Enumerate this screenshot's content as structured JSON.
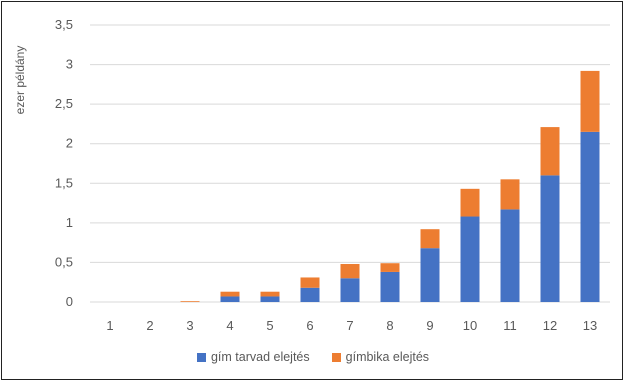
{
  "chart_data": {
    "type": "bar",
    "stacked": true,
    "title": "",
    "xlabel": "",
    "ylabel": "ezer példány",
    "categories": [
      "1",
      "2",
      "3",
      "4",
      "5",
      "6",
      "7",
      "8",
      "9",
      "10",
      "11",
      "12",
      "13"
    ],
    "ylim": [
      0,
      3.5
    ],
    "yticks": [
      "0",
      "0,5",
      "1",
      "1,5",
      "2",
      "2,5",
      "3",
      "3,5"
    ],
    "grid": true,
    "legend_position": "bottom",
    "series": [
      {
        "name": "gím tarvad elejtés",
        "color": "#4472c4",
        "values": [
          0,
          0,
          0,
          0.07,
          0.07,
          0.18,
          0.3,
          0.38,
          0.68,
          1.08,
          1.17,
          1.6,
          2.15
        ]
      },
      {
        "name": "gímbika elejtés",
        "color": "#ed7d31",
        "values": [
          0,
          0,
          0.01,
          0.06,
          0.06,
          0.13,
          0.18,
          0.11,
          0.24,
          0.35,
          0.38,
          0.61,
          0.77
        ]
      }
    ]
  }
}
